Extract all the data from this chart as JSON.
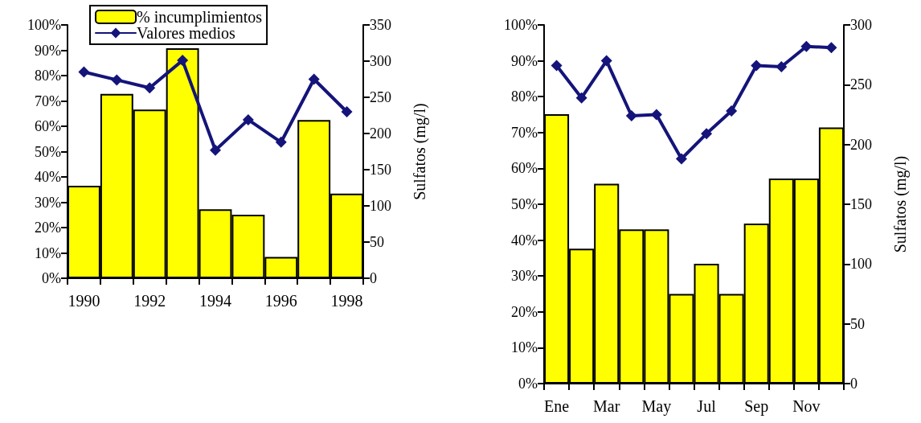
{
  "chart_data": [
    {
      "type": "bar",
      "categories": [
        "1990",
        null,
        "1992",
        null,
        "1994",
        null,
        "1996",
        null,
        "1998"
      ],
      "series": [
        {
          "name": "% incumplimientos",
          "color": "#ffff00",
          "values": [
            36.5,
            72.8,
            66.6,
            90.8,
            27.2,
            25.1,
            8.4,
            62.5,
            33.4
          ]
        },
        {
          "name": "Valores medios",
          "type": "line",
          "axis": "y2",
          "color": "#14147a",
          "values": [
            285,
            274,
            263,
            301,
            177,
            219,
            188,
            275,
            230
          ]
        }
      ],
      "ylim": [
        0,
        100
      ],
      "yticks": [
        {
          "value": 0,
          "label": "0%"
        },
        {
          "value": 10,
          "label": "10%"
        },
        {
          "value": 20,
          "label": "20%"
        },
        {
          "value": 30,
          "label": "30%"
        },
        {
          "value": 40,
          "label": "40%"
        },
        {
          "value": 50,
          "label": "50%"
        },
        {
          "value": 60,
          "label": "60%"
        },
        {
          "value": 70,
          "label": "70%"
        },
        {
          "value": 80,
          "label": "80%"
        },
        {
          "value": 90,
          "label": "90%"
        },
        {
          "value": 100,
          "label": "100%"
        }
      ],
      "y2lim": [
        0,
        350
      ],
      "y2ticks": [
        0,
        50,
        100,
        150,
        200,
        250,
        300,
        350
      ],
      "y2label": "Sulfatos (mg/l)",
      "legend": "top",
      "marker": "diamond"
    },
    {
      "type": "bar",
      "categories": [
        "Ene",
        null,
        "Mar",
        null,
        "May",
        null,
        "Jul",
        null,
        "Sep",
        null,
        "Nov",
        null
      ],
      "series": [
        {
          "color": "#ffff00",
          "values": [
            75.1,
            37.6,
            55.7,
            43.0,
            43.0,
            25.0,
            33.4,
            25.0,
            44.6,
            57.2,
            57.2,
            71.4
          ]
        },
        {
          "type": "line",
          "axis": "y2",
          "color": "#14147a",
          "values": [
            266,
            239,
            270,
            224,
            225,
            188,
            209,
            228,
            266,
            265,
            282,
            281
          ]
        }
      ],
      "ylim": [
        0,
        100
      ],
      "yticks": [
        {
          "value": 0,
          "label": "0%"
        },
        {
          "value": 10,
          "label": "10%"
        },
        {
          "value": 20,
          "label": "20%"
        },
        {
          "value": 30,
          "label": "30%"
        },
        {
          "value": 40,
          "label": "40%"
        },
        {
          "value": 50,
          "label": "50%"
        },
        {
          "value": 60,
          "label": "60%"
        },
        {
          "value": 70,
          "label": "70%"
        },
        {
          "value": 80,
          "label": "80%"
        },
        {
          "value": 90,
          "label": "90%"
        },
        {
          "value": 100,
          "label": "100%"
        }
      ],
      "y2lim": [
        0,
        300
      ],
      "y2ticks": [
        0,
        50,
        100,
        150,
        200,
        250,
        300
      ],
      "y2label": "Sulfatos (mg/l)",
      "marker": "diamond"
    }
  ]
}
